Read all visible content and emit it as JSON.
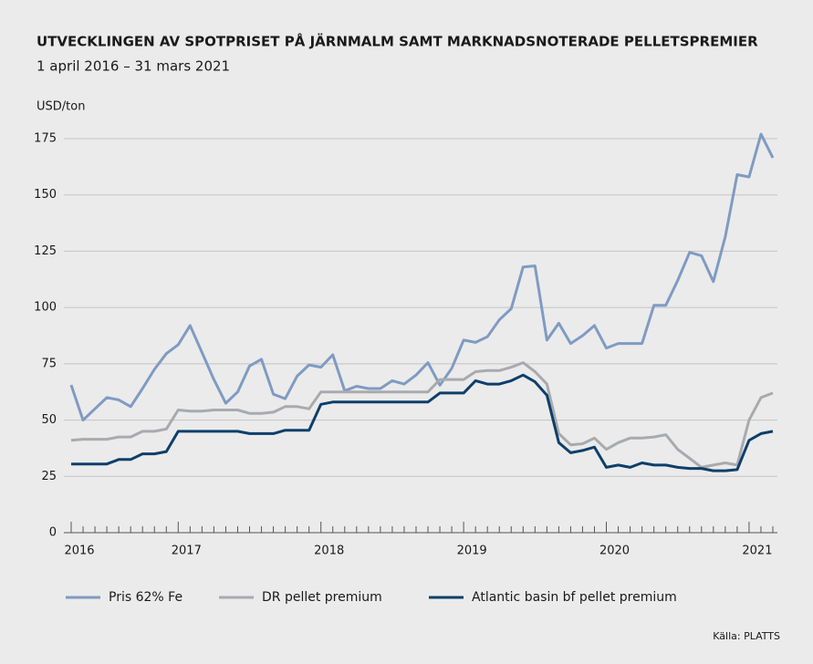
{
  "chart_data": {
    "type": "line",
    "title": "UTVECKLINGEN AV SPOTPRISET PÅ JÄRNMALM SAMT MARKNADSNOTERADE PELLETSPREMIER",
    "subtitle": "1 april 2016 – 31 mars 2021",
    "y_label": "USD/ton",
    "source": "Källa: PLATTS",
    "categories": [
      "2016",
      null,
      null,
      null,
      null,
      null,
      null,
      null,
      null,
      "2017",
      null,
      null,
      null,
      null,
      null,
      null,
      null,
      null,
      null,
      null,
      null,
      "2018",
      null,
      null,
      null,
      null,
      null,
      null,
      null,
      null,
      null,
      null,
      null,
      "2019",
      null,
      null,
      null,
      null,
      null,
      null,
      null,
      null,
      null,
      null,
      null,
      "2020",
      null,
      null,
      null,
      null,
      null,
      null,
      null,
      null,
      null,
      null,
      null,
      "2021",
      null,
      null
    ],
    "ylim": [
      0,
      175
    ],
    "yticks": [
      0,
      25,
      50,
      75,
      100,
      125,
      150,
      175
    ],
    "grid": true,
    "legend": "bottom",
    "series": [
      {
        "name": "Pris 62% Fe",
        "color": "#7f9bc2",
        "values": [
          65.6,
          50,
          55,
          60,
          59,
          56,
          64,
          72.5,
          79.5,
          83.5,
          92,
          80,
          68,
          57.5,
          62.5,
          74,
          77,
          61.5,
          59.5,
          69.5,
          74.5,
          73.5,
          79,
          63,
          65,
          64,
          64,
          67.5,
          66,
          70,
          75.5,
          65.5,
          73,
          85.5,
          84.5,
          87,
          94.5,
          99.5,
          118,
          118.5,
          85.5,
          93,
          84,
          87.5,
          92,
          82,
          84,
          84,
          84,
          101,
          101,
          112,
          124.5,
          123,
          111.5,
          131.5,
          159,
          158,
          177,
          166.5
        ]
      },
      {
        "name": "DR pellet premium",
        "color": "#a8aaad",
        "values": [
          41,
          41.5,
          41.5,
          41.5,
          42.5,
          42.5,
          45,
          45,
          46,
          54.5,
          54,
          54,
          54.5,
          54.5,
          54.5,
          53,
          53,
          53.5,
          56,
          56,
          55,
          62.5,
          62.5,
          62.5,
          62.5,
          62.5,
          62.5,
          62.5,
          62.5,
          62.5,
          62.5,
          68,
          68,
          68,
          71.5,
          72,
          72,
          73.5,
          75.5,
          71.5,
          66,
          44,
          39,
          39.5,
          42,
          37,
          40,
          42,
          42,
          42.5,
          43.5,
          37,
          33,
          29,
          30,
          31,
          30,
          50,
          60,
          62
        ]
      },
      {
        "name": "Atlantic basin bf pellet premium",
        "color": "#0d3f6b",
        "values": [
          30.5,
          30.5,
          30.5,
          30.5,
          32.5,
          32.5,
          35,
          35,
          36,
          45,
          45,
          45,
          45,
          45,
          45,
          44,
          44,
          44,
          45.5,
          45.5,
          45.5,
          57,
          58,
          58,
          58,
          58,
          58,
          58,
          58,
          58,
          58,
          62,
          62,
          62,
          67.5,
          66,
          66,
          67.5,
          70,
          67,
          61,
          40,
          35.5,
          36.5,
          38,
          29,
          30,
          29,
          31,
          30,
          30,
          29,
          28.5,
          28.5,
          27.5,
          27.5,
          28,
          41,
          44,
          45
        ]
      }
    ]
  }
}
